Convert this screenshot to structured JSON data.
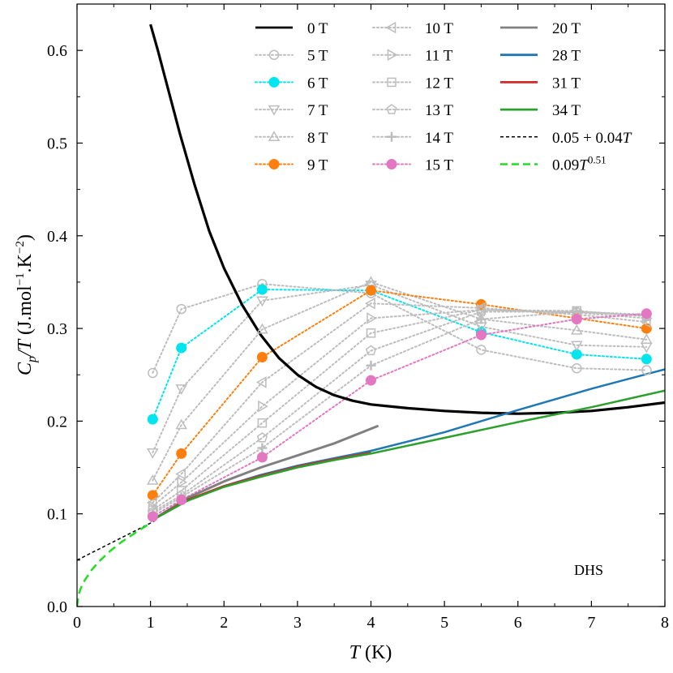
{
  "chart_data": {
    "type": "line",
    "title": "",
    "annotation": "DHS",
    "xlabel": {
      "symbol": "T",
      "unit": " (K)"
    },
    "ylabel": {
      "symbol_main": "C",
      "symbol_sub": "p",
      "symbol_rest": "/T",
      "unit_pre": " (J.mol",
      "unit_exp1": "−1",
      "unit_mid": ".K",
      "unit_exp2": "−2",
      "unit_post": ")"
    },
    "xlim": [
      0,
      8
    ],
    "ylim": [
      0,
      0.65
    ],
    "xticks": [
      "0",
      "1",
      "2",
      "3",
      "4",
      "5",
      "6",
      "7",
      "8"
    ],
    "yticks": [
      "0.0",
      "0.1",
      "0.2",
      "0.3",
      "0.4",
      "0.5",
      "0.6"
    ],
    "legend_position": "top-right",
    "colors": {
      "black": "#000000",
      "gray_light": "#bdbdbd",
      "gray_dark": "#808080",
      "cyan": "#00e5ee",
      "orange": "#ff7f0e",
      "pink": "#e377c2",
      "blue": "#1f77b4",
      "red": "#d62728",
      "green": "#2ca02c",
      "lime": "#22dd22"
    },
    "temperatures_K": [
      1.03,
      1.42,
      2.52,
      4.0,
      5.5,
      6.8,
      7.75
    ],
    "marker_series": [
      {
        "name": "5 T",
        "marker": "circle-open",
        "color": "#bdbdbd",
        "values": [
          0.252,
          0.321,
          0.348,
          0.338,
          0.277,
          0.257,
          0.255
        ]
      },
      {
        "name": "6 T",
        "marker": "circle-filled",
        "color": "#00e5ee",
        "values": [
          0.202,
          0.279,
          0.342,
          0.341,
          0.296,
          0.272,
          0.267
        ]
      },
      {
        "name": "7 T",
        "marker": "tri-down",
        "color": "#bdbdbd",
        "values": [
          0.166,
          0.235,
          0.33,
          0.347,
          0.302,
          0.282,
          0.28
        ]
      },
      {
        "name": "8 T",
        "marker": "tri-up",
        "color": "#bdbdbd",
        "values": [
          0.136,
          0.196,
          0.299,
          0.35,
          0.31,
          0.298,
          0.288
        ]
      },
      {
        "name": "9 T",
        "marker": "circle-filled",
        "color": "#ff7f0e",
        "values": [
          0.12,
          0.165,
          0.269,
          0.341,
          0.326,
          0.311,
          0.3
        ]
      },
      {
        "name": "10 T",
        "marker": "tri-left",
        "color": "#bdbdbd",
        "values": [
          0.112,
          0.143,
          0.242,
          0.327,
          0.322,
          0.315,
          0.307
        ]
      },
      {
        "name": "11 T",
        "marker": "tri-right",
        "color": "#bdbdbd",
        "values": [
          0.108,
          0.134,
          0.216,
          0.311,
          0.32,
          0.317,
          0.311
        ]
      },
      {
        "name": "12 T",
        "marker": "square",
        "color": "#bdbdbd",
        "values": [
          0.104,
          0.125,
          0.198,
          0.295,
          0.32,
          0.319,
          0.313
        ]
      },
      {
        "name": "13 T",
        "marker": "pentagon",
        "color": "#bdbdbd",
        "values": [
          0.102,
          0.12,
          0.182,
          0.276,
          0.318,
          0.318,
          0.314
        ]
      },
      {
        "name": "14 T",
        "marker": "plus",
        "color": "#bdbdbd",
        "values": [
          0.1,
          0.118,
          0.171,
          0.26,
          0.31,
          0.318,
          0.315
        ]
      },
      {
        "name": "15 T",
        "marker": "circle-filled",
        "color": "#e377c2",
        "values": [
          0.097,
          0.115,
          0.161,
          0.244,
          0.293,
          0.31,
          0.316
        ]
      }
    ],
    "line_series": [
      {
        "name": "0 T",
        "color": "#000000",
        "width": 3.2,
        "x": [
          1.0,
          1.1,
          1.25,
          1.4,
          1.6,
          1.8,
          2.0,
          2.25,
          2.5,
          2.75,
          3.0,
          3.25,
          3.5,
          3.75,
          4.0,
          4.25,
          4.5,
          5.0,
          5.5,
          6.0,
          6.5,
          7.0,
          7.5,
          8.0
        ],
        "y": [
          0.628,
          0.6,
          0.555,
          0.51,
          0.455,
          0.405,
          0.365,
          0.325,
          0.293,
          0.268,
          0.25,
          0.237,
          0.228,
          0.222,
          0.218,
          0.216,
          0.214,
          0.211,
          0.209,
          0.208,
          0.209,
          0.211,
          0.215,
          0.22
        ]
      },
      {
        "name": "20 T",
        "color": "#808080",
        "width": 3,
        "x": [
          1.0,
          1.5,
          2.0,
          2.5,
          3.0,
          3.5,
          4.1
        ],
        "y": [
          0.092,
          0.117,
          0.135,
          0.15,
          0.163,
          0.176,
          0.195
        ]
      },
      {
        "name": "28 T",
        "color": "#1f77b4",
        "width": 2.5,
        "x": [
          1.0,
          1.5,
          2.0,
          2.5,
          3.0,
          3.5,
          4.0,
          5.0,
          6.0,
          7.0,
          8.0
        ],
        "y": [
          0.092,
          0.115,
          0.13,
          0.142,
          0.152,
          0.16,
          0.168,
          0.188,
          0.212,
          0.235,
          0.256
        ]
      },
      {
        "name": "31 T",
        "color": "#d62728",
        "width": 2.5,
        "x": [
          1.0,
          1.5,
          2.0,
          2.5,
          3.0,
          3.5,
          4.0
        ],
        "y": [
          0.092,
          0.115,
          0.13,
          0.141,
          0.151,
          0.159,
          0.166
        ]
      },
      {
        "name": "34 T",
        "color": "#2ca02c",
        "width": 2.5,
        "x": [
          1.0,
          1.5,
          2.0,
          2.5,
          3.0,
          3.5,
          4.0,
          5.0,
          6.0,
          7.0,
          8.0
        ],
        "y": [
          0.092,
          0.114,
          0.129,
          0.14,
          0.15,
          0.158,
          0.165,
          0.182,
          0.199,
          0.215,
          0.233
        ]
      },
      {
        "name": "0.05 + 0.04T",
        "label_html": "fit-linear",
        "color": "#000000",
        "width": 1.5,
        "dash": "4,3",
        "x": [
          0,
          1.05
        ],
        "y": [
          0.05,
          0.092
        ]
      },
      {
        "name": "0.09T^0.51",
        "label_html": "fit-power",
        "color": "#22dd22",
        "width": 2.5,
        "dash": "10,6",
        "x": [
          0,
          0.02,
          0.05,
          0.1,
          0.2,
          0.3,
          0.45,
          0.6,
          0.8,
          1.0
        ],
        "y": [
          0.0,
          0.0122,
          0.0195,
          0.0277,
          0.0395,
          0.0486,
          0.0598,
          0.0693,
          0.08,
          0.09
        ]
      }
    ],
    "legend": [
      {
        "label": "0 T",
        "style": "line",
        "color": "#000000"
      },
      {
        "label": "5 T",
        "style": "marker",
        "ref": "5 T"
      },
      {
        "label": "6 T",
        "style": "marker",
        "ref": "6 T"
      },
      {
        "label": "7 T",
        "style": "marker",
        "ref": "7 T"
      },
      {
        "label": "8 T",
        "style": "marker",
        "ref": "8 T"
      },
      {
        "label": "9 T",
        "style": "marker",
        "ref": "9 T"
      },
      {
        "label": "10 T",
        "style": "marker",
        "ref": "10 T"
      },
      {
        "label": "11 T",
        "style": "marker",
        "ref": "11 T"
      },
      {
        "label": "12 T",
        "style": "marker",
        "ref": "12 T"
      },
      {
        "label": "13 T",
        "style": "marker",
        "ref": "13 T"
      },
      {
        "label": "14 T",
        "style": "marker",
        "ref": "14 T"
      },
      {
        "label": "15 T",
        "style": "marker",
        "ref": "15 T"
      },
      {
        "label": "20 T",
        "style": "line",
        "color": "#808080"
      },
      {
        "label": "28 T",
        "style": "line",
        "color": "#1f77b4"
      },
      {
        "label": "31 T",
        "style": "line",
        "color": "#d62728"
      },
      {
        "label": "34 T",
        "style": "line",
        "color": "#2ca02c"
      },
      {
        "label": "0.05 + 0.04T",
        "style": "dash",
        "color": "#000000",
        "text": {
          "pre": "0.05 + 0.04",
          "italic": "T",
          "sup": ""
        }
      },
      {
        "label": "0.09T^0.51",
        "style": "dash-wide",
        "color": "#22dd22",
        "text": {
          "pre": "0.09",
          "italic": "T",
          "sup": "0.51"
        }
      }
    ]
  }
}
